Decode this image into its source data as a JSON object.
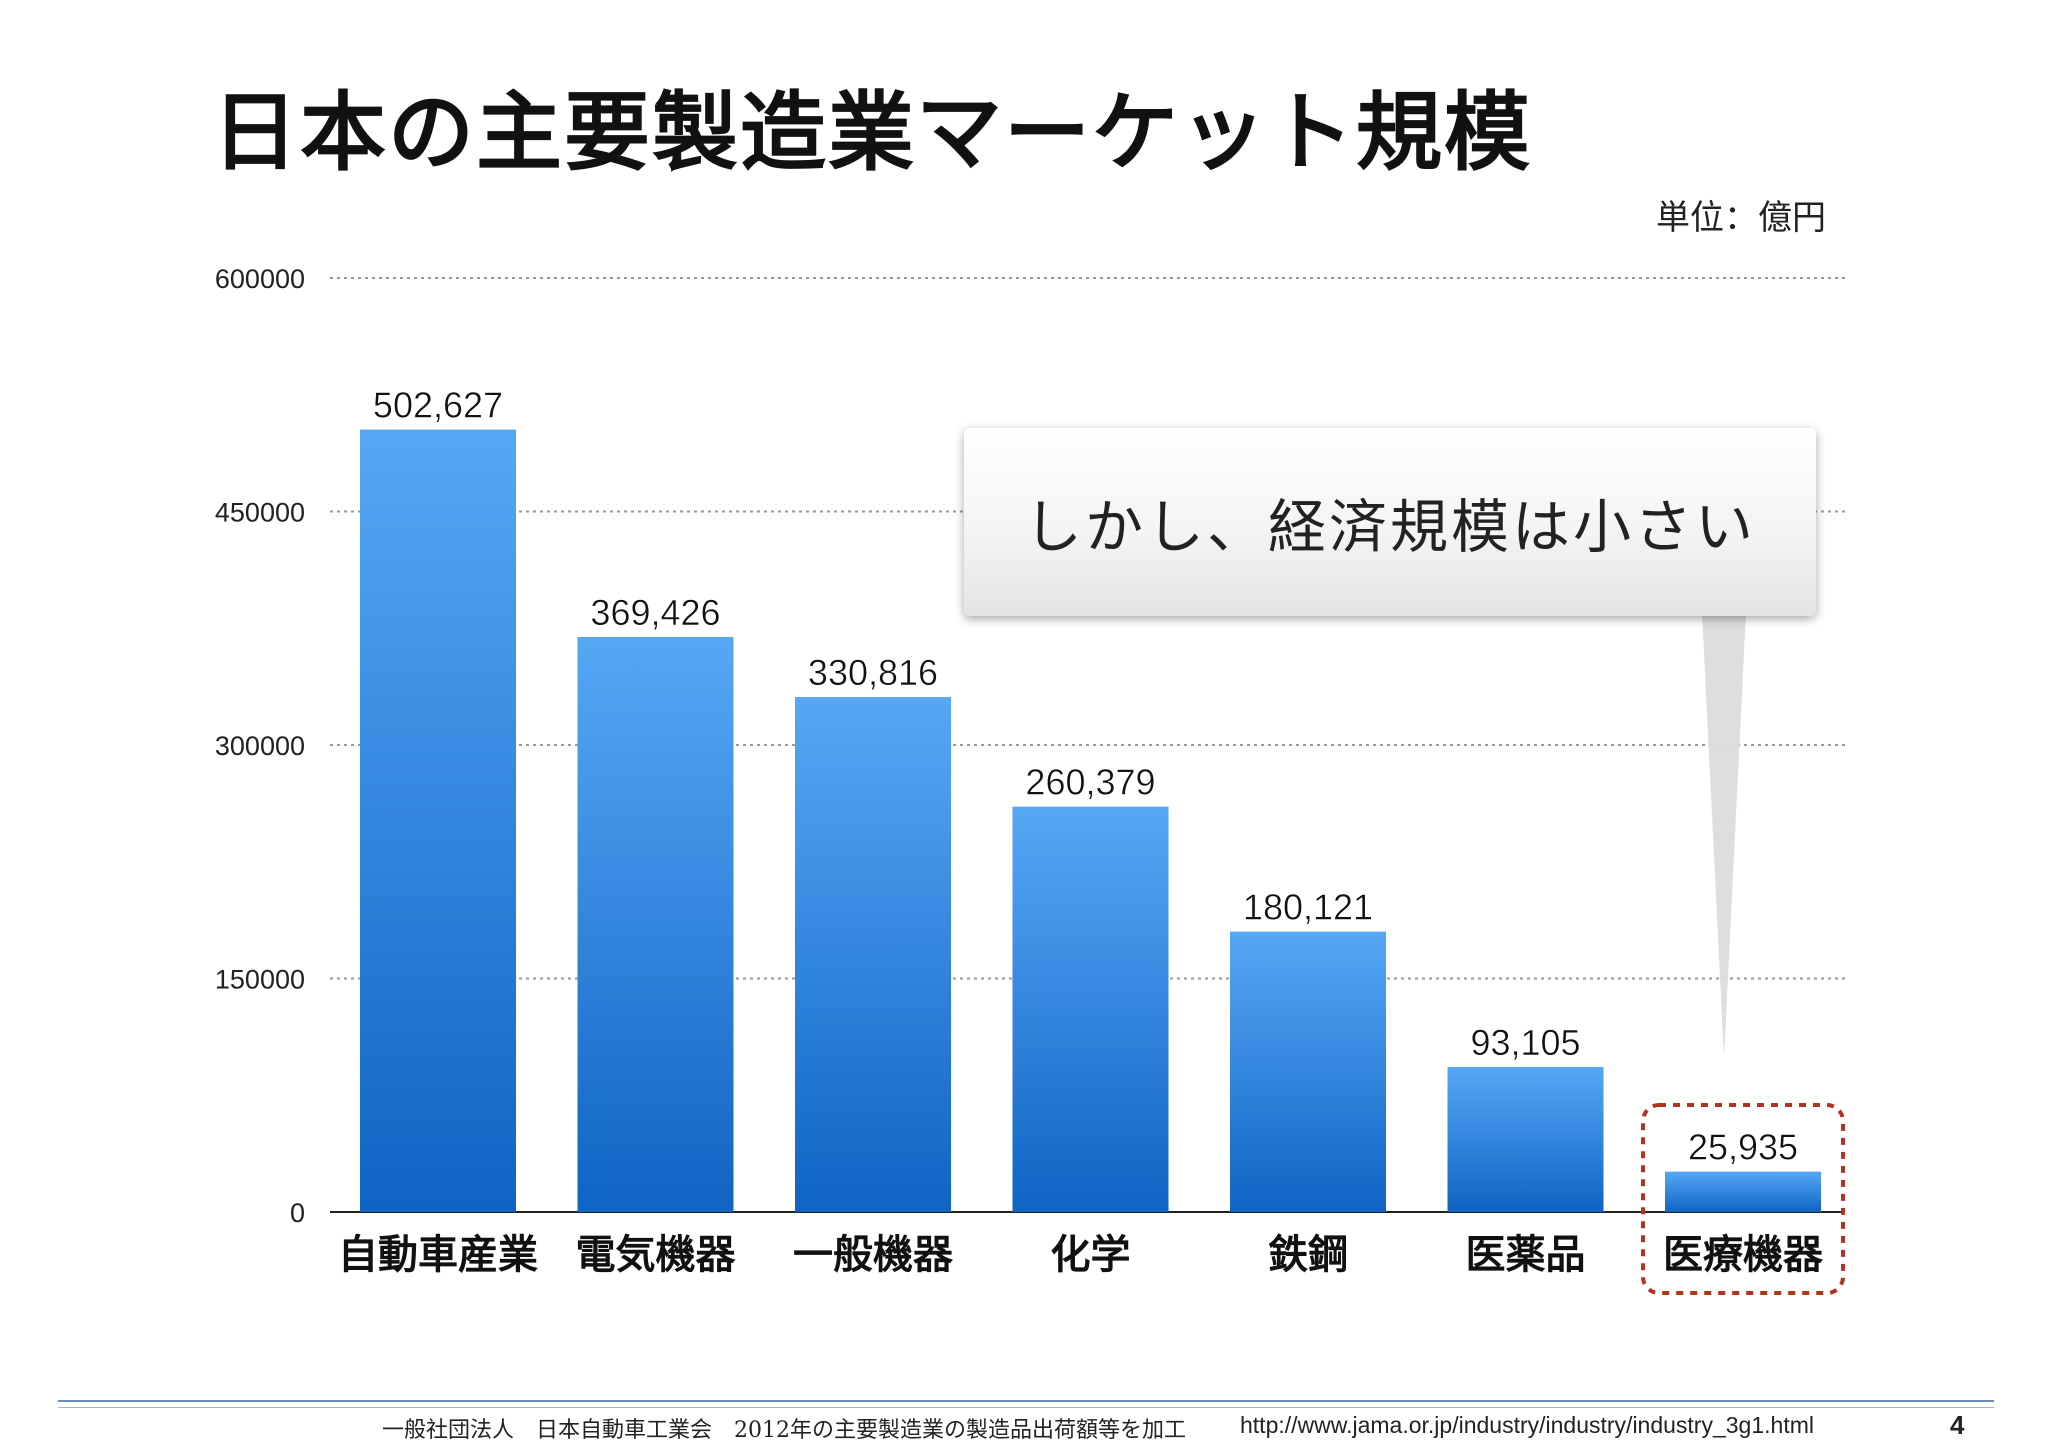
{
  "slide": {
    "title": "日本の主要製造業マーケット規模",
    "unit": "単位：億円",
    "callout": "しかし、経済規模は小さい"
  },
  "chart_data": {
    "type": "bar",
    "categories": [
      "自動車産業",
      "電気機器",
      "一般機器",
      "化学",
      "鉄鋼",
      "医薬品",
      "医療機器"
    ],
    "values": [
      502627,
      369426,
      330816,
      260379,
      180121,
      93105,
      25935
    ],
    "value_labels": [
      "502,627",
      "369,426",
      "330,816",
      "260,379",
      "180,121",
      "93,105",
      "25,935"
    ],
    "y_ticks": [
      "0",
      "150000",
      "300000",
      "450000",
      "600000"
    ],
    "ylim": [
      0,
      600000
    ],
    "grid": true,
    "highlighted_category": "医療機器",
    "bar_color_top": "#56a8f5",
    "bar_color_bottom": "#0f64c4",
    "highlight_border_color": "#b0351f"
  },
  "footer": {
    "source": "一般社団法人　日本自動車工業会　2012年の主要製造業の製造品出荷額等を加工",
    "url": "http://www.jama.or.jp/industry/industry/industry_3g1.html",
    "page_number": "4"
  }
}
